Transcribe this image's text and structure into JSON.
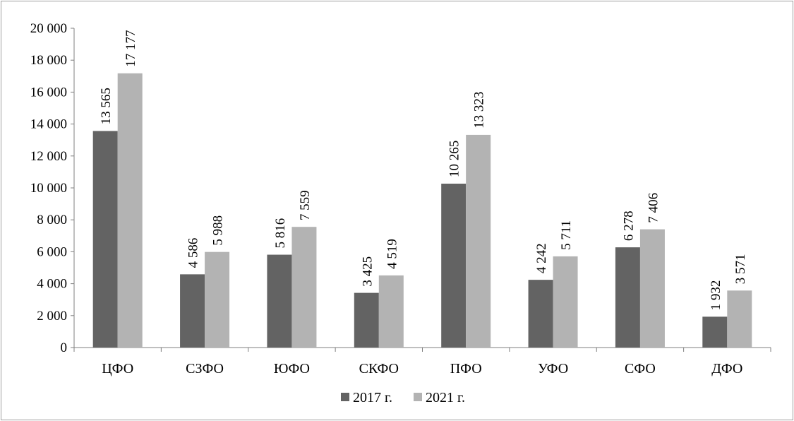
{
  "chart_data": {
    "type": "bar",
    "categories": [
      "ЦФО",
      "СЗФО",
      "ЮФО",
      "СКФО",
      "ПФО",
      "УФО",
      "СФО",
      "ДФО"
    ],
    "series": [
      {
        "name": "2017 г.",
        "color": "#636363",
        "values": [
          13565,
          4586,
          5816,
          3425,
          10265,
          4242,
          6278,
          1932
        ],
        "labels": [
          "13 565",
          "4 586",
          "5 816",
          "3 425",
          "10 265",
          "4 242",
          "6 278",
          "1 932"
        ]
      },
      {
        "name": "2021 г.",
        "color": "#b3b3b3",
        "values": [
          17177,
          5988,
          7559,
          4519,
          13323,
          5711,
          7406,
          3571
        ],
        "labels": [
          "17 177",
          "5 988",
          "7 559",
          "4 519",
          "13 323",
          "5 711",
          "7 406",
          "3 571"
        ]
      }
    ],
    "y_ticks": [
      0,
      2000,
      4000,
      6000,
      8000,
      10000,
      12000,
      14000,
      16000,
      18000,
      20000
    ],
    "y_tick_labels": [
      "0",
      "2 000",
      "4 000",
      "6 000",
      "8 000",
      "10 000",
      "12 000",
      "14 000",
      "16 000",
      "18 000",
      "20 000"
    ],
    "ylim": [
      0,
      20000
    ],
    "grid": false,
    "legend_position": "bottom"
  }
}
